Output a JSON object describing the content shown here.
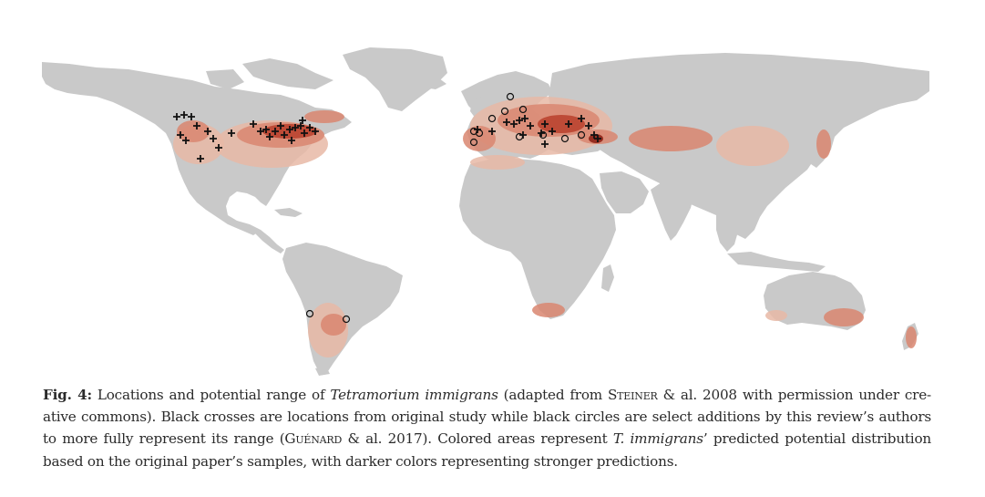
{
  "figure": {
    "label": "Fig. 4:",
    "caption_parts": {
      "p1": " Locations and potential range of ",
      "species": "Tetramorium immigrans",
      "p2": " (adapted from ",
      "author1": "Steiner",
      "p3": " & al. 2008 with permission under cre-",
      "p4": "ative commons). Black crosses are locations from original study while black circles are select additions by this review’s authors",
      "p5": "to more fully represent its range (",
      "author2": "Guénard",
      "p6": " & al. 2017). Colored areas represent ",
      "species_short": "T. immigrans",
      "p7": "’ predicted potential distribution",
      "p8": "based on the original paper’s samples, with darker colors representing stronger predictions."
    }
  },
  "map": {
    "land_color": "#c9c9c9",
    "range_colors": [
      "#e8b8a6",
      "#d98670",
      "#b8402c",
      "#8e2317"
    ],
    "marker_color": "#111111",
    "marker_types": [
      "cross",
      "circle"
    ]
  }
}
